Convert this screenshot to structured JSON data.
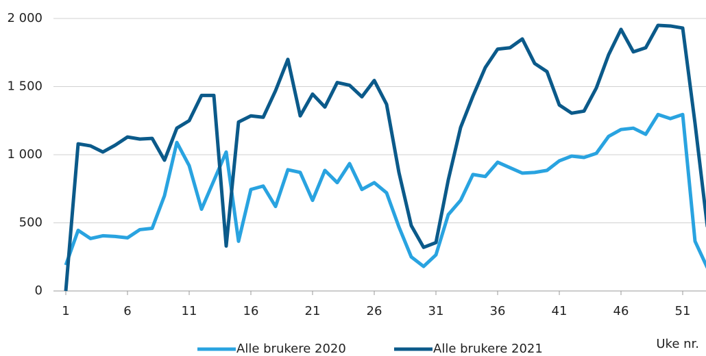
{
  "chart_data": {
    "type": "line",
    "x": [
      1,
      2,
      3,
      4,
      5,
      6,
      7,
      8,
      9,
      10,
      11,
      12,
      13,
      14,
      15,
      16,
      17,
      18,
      19,
      20,
      21,
      22,
      23,
      24,
      25,
      26,
      27,
      28,
      29,
      30,
      31,
      32,
      33,
      34,
      35,
      36,
      37,
      38,
      39,
      40,
      41,
      42,
      43,
      44,
      45,
      46,
      47,
      48,
      49,
      50,
      51,
      52,
      53
    ],
    "series": [
      {
        "name": "Alle brukere 2020",
        "color": "#29a3e0",
        "values": [
          190,
          445,
          385,
          405,
          400,
          390,
          450,
          460,
          700,
          1090,
          920,
          600,
          810,
          1020,
          365,
          745,
          770,
          620,
          890,
          870,
          665,
          885,
          795,
          935,
          745,
          795,
          720,
          470,
          250,
          180,
          265,
          560,
          665,
          855,
          840,
          945,
          905,
          865,
          870,
          885,
          955,
          990,
          980,
          1010,
          1135,
          1185,
          1195,
          1150,
          1295,
          1265,
          1295,
          365,
          170
        ]
      },
      {
        "name": "Alle brukere 2021",
        "color": "#0b5a8a",
        "values": [
          0,
          1080,
          1065,
          1020,
          1070,
          1130,
          1115,
          1120,
          960,
          1195,
          1250,
          1435,
          1435,
          330,
          1240,
          1285,
          1275,
          1470,
          1700,
          1285,
          1445,
          1350,
          1530,
          1510,
          1425,
          1545,
          1370,
          870,
          480,
          320,
          355,
          815,
          1200,
          1430,
          1640,
          1775,
          1785,
          1850,
          1670,
          1610,
          1365,
          1305,
          1320,
          1490,
          1735,
          1920,
          1755,
          1785,
          1950,
          1945,
          1930,
          1230,
          470
        ]
      }
    ],
    "x_label": "Uke nr.",
    "xlim": [
      1,
      53
    ],
    "xticks": [
      1,
      6,
      11,
      16,
      21,
      26,
      31,
      36,
      41,
      46,
      51
    ],
    "ylim": [
      0,
      2000
    ],
    "yticks": [
      0,
      500,
      {
        "value": 1000,
        "label": "1 000"
      },
      {
        "value": 1500,
        "label": "1 500"
      },
      {
        "value": 2000,
        "label": "2 000"
      }
    ],
    "grid": true,
    "legend": "bottom"
  }
}
